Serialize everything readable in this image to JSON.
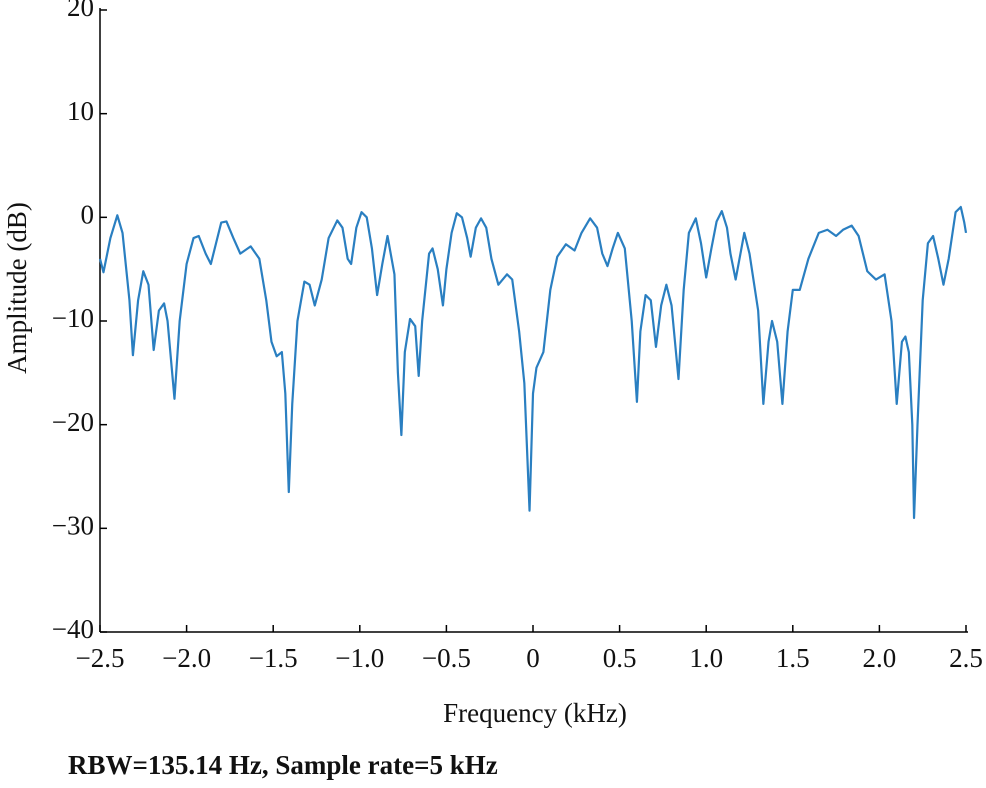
{
  "chart_data": {
    "type": "line",
    "xlabel": "Frequency (kHz)",
    "ylabel": "Amplitude (dB)",
    "annotation": "RBW=135.14 Hz, Sample rate=5 kHz",
    "xlim": [
      -2.5,
      2.5
    ],
    "ylim": [
      -40,
      20
    ],
    "xticks": [
      {
        "value": -2.5,
        "label": "−2.5"
      },
      {
        "value": -2.0,
        "label": "−2.0"
      },
      {
        "value": -1.5,
        "label": "−1.5"
      },
      {
        "value": -1.0,
        "label": "−1.0"
      },
      {
        "value": -0.5,
        "label": "−0.5"
      },
      0,
      {
        "value": 0.5,
        "label": "0.5"
      },
      {
        "value": 1.0,
        "label": "1.0"
      },
      {
        "value": 1.5,
        "label": "1.5"
      },
      {
        "value": 2.0,
        "label": "2.0"
      },
      {
        "value": 2.5,
        "label": "2.5"
      }
    ],
    "yticks": [
      {
        "value": -40,
        "label": "−40"
      },
      {
        "value": -30,
        "label": "−30"
      },
      {
        "value": -20,
        "label": "−20"
      },
      {
        "value": -10,
        "label": "−10"
      },
      0,
      10,
      20
    ],
    "grid": false,
    "series": [
      {
        "color": "#2a7fc1",
        "x": [
          -2.5,
          -2.48,
          -2.44,
          -2.4,
          -2.37,
          -2.33,
          -2.31,
          -2.28,
          -2.25,
          -2.22,
          -2.19,
          -2.16,
          -2.13,
          -2.11,
          -2.07,
          -2.04,
          -2.0,
          -1.96,
          -1.93,
          -1.89,
          -1.86,
          -1.83,
          -1.8,
          -1.77,
          -1.73,
          -1.69,
          -1.63,
          -1.58,
          -1.54,
          -1.51,
          -1.48,
          -1.45,
          -1.43,
          -1.41,
          -1.39,
          -1.36,
          -1.32,
          -1.29,
          -1.26,
          -1.22,
          -1.18,
          -1.13,
          -1.1,
          -1.07,
          -1.05,
          -1.02,
          -0.99,
          -0.96,
          -0.93,
          -0.9,
          -0.87,
          -0.84,
          -0.8,
          -0.78,
          -0.76,
          -0.74,
          -0.71,
          -0.68,
          -0.66,
          -0.64,
          -0.6,
          -0.58,
          -0.55,
          -0.52,
          -0.5,
          -0.47,
          -0.44,
          -0.41,
          -0.38,
          -0.36,
          -0.33,
          -0.3,
          -0.27,
          -0.24,
          -0.2,
          -0.15,
          -0.12,
          -0.08,
          -0.05,
          -0.02,
          0.0,
          0.02,
          0.06,
          0.1,
          0.14,
          0.19,
          0.24,
          0.28,
          0.33,
          0.37,
          0.4,
          0.43,
          0.46,
          0.49,
          0.53,
          0.57,
          0.6,
          0.62,
          0.65,
          0.68,
          0.71,
          0.74,
          0.77,
          0.8,
          0.84,
          0.87,
          0.9,
          0.94,
          0.97,
          1.0,
          1.03,
          1.06,
          1.09,
          1.12,
          1.14,
          1.17,
          1.2,
          1.22,
          1.25,
          1.3,
          1.33,
          1.36,
          1.38,
          1.41,
          1.44,
          1.47,
          1.5,
          1.54,
          1.59,
          1.65,
          1.7,
          1.75,
          1.79,
          1.84,
          1.88,
          1.93,
          1.98,
          2.03,
          2.07,
          2.1,
          2.13,
          2.15,
          2.17,
          2.19,
          2.2,
          2.22,
          2.25,
          2.28,
          2.31,
          2.34,
          2.37,
          2.4,
          2.44,
          2.47,
          2.49,
          2.5
        ],
        "values": [
          -4,
          -5.3,
          -2,
          0.2,
          -1.5,
          -8,
          -13.3,
          -8,
          -5.2,
          -6.5,
          -12.8,
          -9,
          -8.3,
          -10,
          -17.5,
          -10,
          -4.5,
          -2,
          -1.8,
          -3.5,
          -4.5,
          -2.5,
          -0.5,
          -0.4,
          -2,
          -3.5,
          -2.8,
          -4,
          -8,
          -12,
          -13.4,
          -13,
          -17,
          -26.5,
          -18,
          -10,
          -6.2,
          -6.5,
          -8.5,
          -6,
          -2,
          -0.3,
          -1,
          -4,
          -4.5,
          -1,
          0.5,
          0,
          -3,
          -7.5,
          -4.5,
          -1.8,
          -5.5,
          -15,
          -21,
          -13,
          -9.8,
          -10.5,
          -15.3,
          -10,
          -3.5,
          -3,
          -5,
          -8.5,
          -5,
          -1.5,
          0.4,
          0,
          -2,
          -3.8,
          -1,
          -0.1,
          -1,
          -4,
          -6.5,
          -5.5,
          -6,
          -11,
          -16,
          -28.3,
          -17,
          -14.5,
          -13,
          -7,
          -3.8,
          -2.6,
          -3.2,
          -1.5,
          -0.1,
          -1,
          -3.5,
          -4.7,
          -3,
          -1.5,
          -3,
          -10,
          -17.8,
          -11,
          -7.5,
          -8,
          -12.5,
          -8.5,
          -6.5,
          -8.5,
          -15.6,
          -7,
          -1.5,
          -0.1,
          -2.5,
          -5.8,
          -3,
          -0.4,
          0.6,
          -1,
          -3.5,
          -6,
          -3.3,
          -1.5,
          -3.5,
          -9,
          -18,
          -12,
          -10,
          -12,
          -18,
          -11,
          -7,
          -7,
          -4,
          -1.5,
          -1.2,
          -1.8,
          -1.2,
          -0.8,
          -1.8,
          -5.2,
          -6,
          -5.5,
          -10,
          -18,
          -12,
          -11.5,
          -13,
          -20,
          -29,
          -20,
          -8,
          -2.5,
          -1.8,
          -4,
          -6.5,
          -4,
          0.5,
          1,
          -0.5,
          -1.5
        ]
      }
    ]
  }
}
